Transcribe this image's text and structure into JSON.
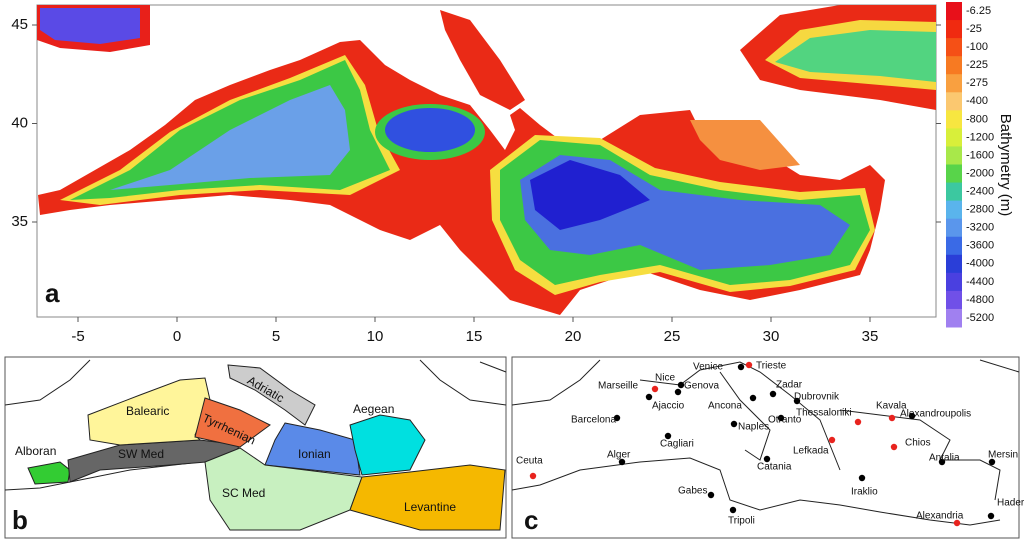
{
  "panel_a": {
    "label": "a",
    "xticks": [
      -5,
      0,
      5,
      10,
      15,
      20,
      25,
      30,
      35
    ],
    "yticks": [
      35,
      40,
      45
    ],
    "colorbar": {
      "title": "Bathymetry (m)",
      "values": [
        -6.25,
        -25,
        -100,
        -225,
        -275,
        -400,
        -800,
        -1200,
        -1600,
        -2000,
        -2400,
        -2800,
        -3200,
        -3600,
        -4000,
        -4400,
        -4800,
        -5200
      ],
      "colors": [
        "#e8101a",
        "#f02a10",
        "#f55016",
        "#f77a22",
        "#f9a040",
        "#fbc870",
        "#f7e640",
        "#d8ef3a",
        "#a8e84a",
        "#58d44a",
        "#3cc8a0",
        "#5ab4ec",
        "#5a96ec",
        "#3a6ae6",
        "#2a3ed8",
        "#4a40e0",
        "#7050e8",
        "#a080f0"
      ]
    }
  },
  "panel_b": {
    "label": "b",
    "regions": [
      "Alboran",
      "SW Med",
      "Balearic",
      "Tyrrhenian",
      "Adriatic",
      "Ionian",
      "SC Med",
      "Aegean",
      "Levantine"
    ]
  },
  "panel_c": {
    "label": "c",
    "cities": [
      {
        "name": "Marseille",
        "color": "#e8231e"
      },
      {
        "name": "Nice",
        "color": "#000000"
      },
      {
        "name": "Venice",
        "color": "#000000"
      },
      {
        "name": "Trieste",
        "color": "#e8231e"
      },
      {
        "name": "Genova",
        "color": "#000000"
      },
      {
        "name": "Zadar",
        "color": "#000000"
      },
      {
        "name": "Ajaccio",
        "color": "#000000"
      },
      {
        "name": "Ancona",
        "color": "#000000"
      },
      {
        "name": "Dubrovnik",
        "color": "#000000"
      },
      {
        "name": "Kavala",
        "color": "#e8231e"
      },
      {
        "name": "Barcelona",
        "color": "#000000"
      },
      {
        "name": "Thessaloniki",
        "color": "#e8231e"
      },
      {
        "name": "Alexandroupolis",
        "color": "#000000"
      },
      {
        "name": "Naples",
        "color": "#000000"
      },
      {
        "name": "Otranto",
        "color": "#000000"
      },
      {
        "name": "Cagliari",
        "color": "#000000"
      },
      {
        "name": "Lefkada",
        "color": "#e8231e"
      },
      {
        "name": "Chios",
        "color": "#e8231e"
      },
      {
        "name": "Alger",
        "color": "#000000"
      },
      {
        "name": "Catania",
        "color": "#000000"
      },
      {
        "name": "Antalia",
        "color": "#000000"
      },
      {
        "name": "Mersin",
        "color": "#000000"
      },
      {
        "name": "Ceuta",
        "color": "#e8231e"
      },
      {
        "name": "Iraklio",
        "color": "#000000"
      },
      {
        "name": "Gabes",
        "color": "#000000"
      },
      {
        "name": "Hadera",
        "color": "#000000"
      },
      {
        "name": "Alexandria",
        "color": "#e8231e"
      },
      {
        "name": "Tripoli",
        "color": "#000000"
      }
    ]
  }
}
